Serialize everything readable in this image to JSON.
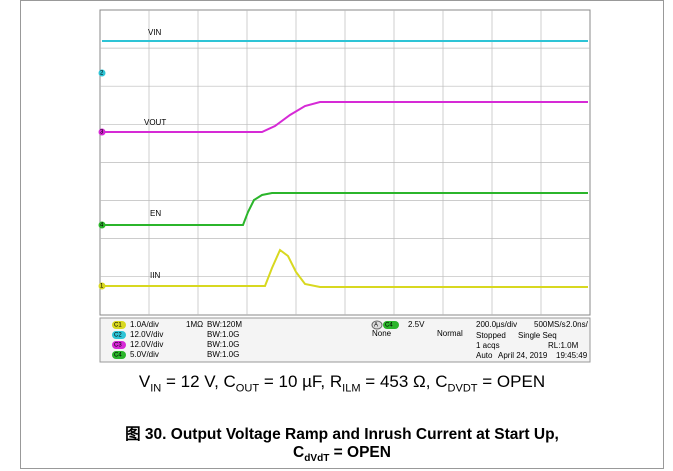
{
  "scope": {
    "trace_labels": [
      "VIN",
      "VOUT",
      "EN",
      "IIN"
    ],
    "markers": [
      "2",
      "3",
      "4",
      "1"
    ],
    "channels": [
      {
        "badge": "C1",
        "scale": "1.0A/div",
        "coupling": "1MΩ",
        "bandwidth": "BW:120M"
      },
      {
        "badge": "C2",
        "scale": "12.0V/div",
        "bandwidth": "BW:1.0G"
      },
      {
        "badge": "C3",
        "scale": "12.0V/div",
        "bandwidth": "BW:1.0G"
      },
      {
        "badge": "C4",
        "scale": "5.0V/div",
        "bandwidth": "BW:1.0G"
      }
    ],
    "trigger": {
      "source": "A",
      "channel": "C4",
      "level": "2.5V",
      "type": "None",
      "mode": "Normal"
    },
    "acquisition": {
      "timebase": "200.0µs/div",
      "rate": "500MS/s",
      "resolution": "2.0ns/",
      "state": "Stopped",
      "sequence": "Single Seq",
      "acqs": "1 acqs",
      "record": "RL:1.0M",
      "trigger_mode": "Auto",
      "date": "April 24, 2019",
      "time": "19:45:49"
    }
  },
  "caption": {
    "conditions": [
      {
        "symbol": "V",
        "sub": "IN",
        "rest": " = 12 V, "
      },
      {
        "symbol": "C",
        "sub": "OUT",
        "rest": " = 10 µF, "
      },
      {
        "symbol": "R",
        "sub": "ILM",
        "rest": " = 453 Ω, "
      },
      {
        "symbol": "C",
        "sub": "DVDT",
        "rest": " = OPEN"
      }
    ],
    "figure_title": "图 30. Output Voltage Ramp and Inrush Current at Start Up,",
    "figure_title_line2": {
      "symbol": "C",
      "sub": "dVdT",
      "rest": " = OPEN"
    }
  }
}
